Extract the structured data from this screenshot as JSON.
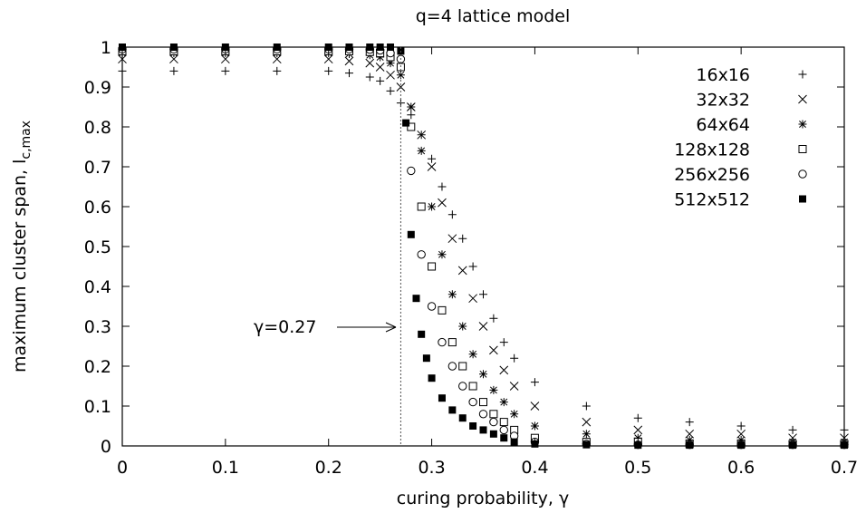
{
  "chart_data": {
    "type": "scatter",
    "title": "q=4 lattice model",
    "xlabel": "curing probability, γ",
    "ylabel": "maximum cluster span, l",
    "ylabel_sub": "c,max",
    "xlim": [
      0,
      0.7
    ],
    "ylim": [
      0,
      1
    ],
    "xticks": [
      0,
      0.1,
      0.2,
      0.3,
      0.4,
      0.5,
      0.6,
      0.7
    ],
    "xtick_labels": [
      "0",
      "0.1",
      "0.2",
      "0.3",
      "0.4",
      "0.5",
      "0.6",
      "0.7"
    ],
    "yticks": [
      0,
      0.1,
      0.2,
      0.3,
      0.4,
      0.5,
      0.6,
      0.7,
      0.8,
      0.9,
      1
    ],
    "ytick_labels": [
      "0",
      "0.1",
      "0.2",
      "0.3",
      "0.4",
      "0.5",
      "0.6",
      "0.7",
      "0.8",
      "0.9",
      "1"
    ],
    "grid": false,
    "legend_position": "top-right",
    "annotation": {
      "text": "γ=0.27",
      "x": 0.27,
      "y": 0.3
    },
    "vline_x": 0.27,
    "series": [
      {
        "name": "16x16",
        "marker": "plus",
        "x": [
          0,
          0.05,
          0.1,
          0.15,
          0.2,
          0.22,
          0.24,
          0.25,
          0.26,
          0.27,
          0.28,
          0.29,
          0.3,
          0.31,
          0.32,
          0.33,
          0.34,
          0.35,
          0.36,
          0.37,
          0.38,
          0.4,
          0.45,
          0.5,
          0.55,
          0.6,
          0.65,
          0.7
        ],
        "values": [
          0.94,
          0.94,
          0.94,
          0.94,
          0.94,
          0.935,
          0.925,
          0.915,
          0.89,
          0.86,
          0.83,
          0.78,
          0.72,
          0.65,
          0.58,
          0.52,
          0.45,
          0.38,
          0.32,
          0.26,
          0.22,
          0.16,
          0.1,
          0.07,
          0.06,
          0.05,
          0.04,
          0.04
        ]
      },
      {
        "name": "32x32",
        "marker": "cross",
        "x": [
          0,
          0.05,
          0.1,
          0.15,
          0.2,
          0.22,
          0.24,
          0.25,
          0.26,
          0.27,
          0.28,
          0.29,
          0.3,
          0.31,
          0.32,
          0.33,
          0.34,
          0.35,
          0.36,
          0.37,
          0.38,
          0.4,
          0.45,
          0.5,
          0.55,
          0.6,
          0.65,
          0.7
        ],
        "values": [
          0.97,
          0.97,
          0.97,
          0.97,
          0.97,
          0.965,
          0.96,
          0.95,
          0.93,
          0.9,
          0.85,
          0.78,
          0.7,
          0.61,
          0.52,
          0.44,
          0.37,
          0.3,
          0.24,
          0.19,
          0.15,
          0.1,
          0.06,
          0.04,
          0.03,
          0.03,
          0.02,
          0.02
        ]
      },
      {
        "name": "64x64",
        "marker": "star",
        "x": [
          0,
          0.05,
          0.1,
          0.15,
          0.2,
          0.22,
          0.24,
          0.25,
          0.26,
          0.27,
          0.28,
          0.29,
          0.3,
          0.31,
          0.32,
          0.33,
          0.34,
          0.35,
          0.36,
          0.37,
          0.38,
          0.4,
          0.45,
          0.5,
          0.55,
          0.6,
          0.65,
          0.7
        ],
        "values": [
          0.985,
          0.985,
          0.985,
          0.985,
          0.985,
          0.983,
          0.98,
          0.975,
          0.96,
          0.93,
          0.85,
          0.74,
          0.6,
          0.48,
          0.38,
          0.3,
          0.23,
          0.18,
          0.14,
          0.11,
          0.08,
          0.05,
          0.03,
          0.02,
          0.015,
          0.015,
          0.01,
          0.01
        ]
      },
      {
        "name": "128x128",
        "marker": "square",
        "x": [
          0,
          0.05,
          0.1,
          0.15,
          0.2,
          0.22,
          0.24,
          0.25,
          0.26,
          0.27,
          0.28,
          0.29,
          0.3,
          0.31,
          0.32,
          0.33,
          0.34,
          0.35,
          0.36,
          0.37,
          0.38,
          0.4,
          0.45,
          0.5,
          0.55,
          0.6,
          0.65,
          0.7
        ],
        "values": [
          0.99,
          0.99,
          0.99,
          0.99,
          0.99,
          0.99,
          0.988,
          0.985,
          0.975,
          0.95,
          0.8,
          0.6,
          0.45,
          0.34,
          0.26,
          0.2,
          0.15,
          0.11,
          0.08,
          0.06,
          0.04,
          0.02,
          0.01,
          0.01,
          0.005,
          0.005,
          0.005,
          0.005
        ]
      },
      {
        "name": "256x256",
        "marker": "circle",
        "x": [
          0,
          0.05,
          0.1,
          0.15,
          0.2,
          0.22,
          0.24,
          0.25,
          0.26,
          0.27,
          0.28,
          0.29,
          0.3,
          0.31,
          0.32,
          0.33,
          0.34,
          0.35,
          0.36,
          0.37,
          0.38,
          0.4,
          0.45,
          0.5,
          0.55,
          0.6,
          0.65,
          0.7
        ],
        "values": [
          0.995,
          0.995,
          0.995,
          0.995,
          0.995,
          0.995,
          0.994,
          0.992,
          0.985,
          0.97,
          0.69,
          0.48,
          0.35,
          0.26,
          0.2,
          0.15,
          0.11,
          0.08,
          0.06,
          0.04,
          0.025,
          0.01,
          0.005,
          0.003,
          0.003,
          0.003,
          0.003,
          0.003
        ]
      },
      {
        "name": "512x512",
        "marker": "filled-square",
        "x": [
          0,
          0.05,
          0.1,
          0.15,
          0.2,
          0.22,
          0.24,
          0.25,
          0.26,
          0.27,
          0.275,
          0.28,
          0.285,
          0.29,
          0.295,
          0.3,
          0.31,
          0.32,
          0.33,
          0.34,
          0.35,
          0.36,
          0.37,
          0.38,
          0.4,
          0.45,
          0.5,
          0.55,
          0.6,
          0.65,
          0.7
        ],
        "values": [
          1.0,
          1.0,
          1.0,
          1.0,
          1.0,
          1.0,
          1.0,
          1.0,
          1.0,
          0.99,
          0.81,
          0.53,
          0.37,
          0.28,
          0.22,
          0.17,
          0.12,
          0.09,
          0.07,
          0.05,
          0.04,
          0.03,
          0.02,
          0.01,
          0.005,
          0.003,
          0.002,
          0.002,
          0.002,
          0.002,
          0.002
        ]
      }
    ]
  }
}
